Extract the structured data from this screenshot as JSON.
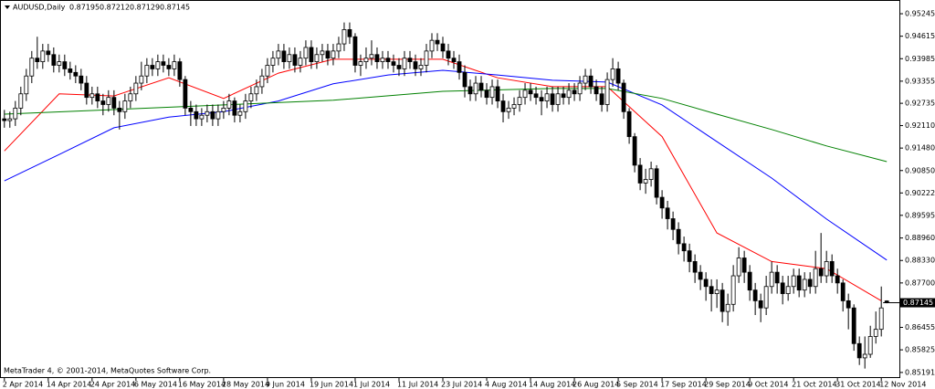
{
  "chart_data": {
    "type": "candlestick",
    "title": "AUDUSD,Daily",
    "footer": "MetaTrader 4, © 2001-2014, MetaQuotes Software Corp.",
    "bull_color": "#ffffff",
    "bear_color": "#000000",
    "xlim": [
      -0.8,
      163.3
    ],
    "ylim": [
      0.8506,
      0.9563
    ],
    "xticks": [
      {
        "value": 0,
        "label": "2 Apr 2014"
      },
      {
        "value": 8,
        "label": "14 Apr 2014"
      },
      {
        "value": 16,
        "label": "24 Apr 2014"
      },
      {
        "value": 24,
        "label": "6 May 2014"
      },
      {
        "value": 32,
        "label": "16 May 2014"
      },
      {
        "value": 40,
        "label": "28 May 2014"
      },
      {
        "value": 48,
        "label": "9 Jun 2014"
      },
      {
        "value": 56,
        "label": "19 Jun 2014"
      },
      {
        "value": 64,
        "label": "1 Jul 2014"
      },
      {
        "value": 72,
        "label": "11 Jul 2014"
      },
      {
        "value": 80,
        "label": "23 Jul 2014"
      },
      {
        "value": 88,
        "label": "4 Aug 2014"
      },
      {
        "value": 96,
        "label": "14 Aug 2014"
      },
      {
        "value": 104,
        "label": "26 Aug 2014"
      },
      {
        "value": 112,
        "label": "5 Sep 2014"
      },
      {
        "value": 120,
        "label": "17 Sep 2014"
      },
      {
        "value": 128,
        "label": "29 Sep 2014"
      },
      {
        "value": 136,
        "label": "9 Oct 2014"
      },
      {
        "value": 144,
        "label": "21 Oct 2014"
      },
      {
        "value": 152,
        "label": "31 Oct 2014"
      },
      {
        "value": 160,
        "label": "12 Nov 2014"
      }
    ],
    "yticks": [
      0.95245,
      0.94615,
      0.93985,
      0.93355,
      0.92735,
      {
        "value": 0.9211,
        "label": "0.92110"
      },
      {
        "value": 0.9148,
        "label": "0.91480"
      },
      {
        "value": 0.9085,
        "label": "0.90850"
      },
      0.90222,
      0.89595,
      {
        "value": 0.8896,
        "label": "0.88960"
      },
      {
        "value": 0.8833,
        "label": "0.88330"
      },
      {
        "value": 0.877,
        "label": "0.87700"
      },
      0.86455,
      0.85825,
      0.85191
    ],
    "candles": [
      [
        0.923,
        0.9255,
        0.9205,
        0.9225
      ],
      [
        0.9225,
        0.925,
        0.9205,
        0.923
      ],
      [
        0.923,
        0.928,
        0.921,
        0.926
      ],
      [
        0.926,
        0.932,
        0.924,
        0.93
      ],
      [
        0.93,
        0.937,
        0.928,
        0.935
      ],
      [
        0.935,
        0.942,
        0.933,
        0.94
      ],
      [
        0.94,
        0.946,
        0.937,
        0.939
      ],
      [
        0.939,
        0.944,
        0.937,
        0.942
      ],
      [
        0.942,
        0.944,
        0.939,
        0.941
      ],
      [
        0.941,
        0.943,
        0.936,
        0.938
      ],
      [
        0.938,
        0.941,
        0.936,
        0.939
      ],
      [
        0.939,
        0.941,
        0.935,
        0.937
      ],
      [
        0.937,
        0.939,
        0.934,
        0.936
      ],
      [
        0.936,
        0.938,
        0.933,
        0.935
      ],
      [
        0.935,
        0.937,
        0.931,
        0.933
      ],
      [
        0.933,
        0.935,
        0.927,
        0.929
      ],
      [
        0.929,
        0.932,
        0.927,
        0.93
      ],
      [
        0.93,
        0.932,
        0.926,
        0.928
      ],
      [
        0.928,
        0.93,
        0.924,
        0.927
      ],
      [
        0.927,
        0.931,
        0.925,
        0.929
      ],
      [
        0.929,
        0.931,
        0.924,
        0.926
      ],
      [
        0.926,
        0.928,
        0.92,
        0.925
      ],
      [
        0.925,
        0.93,
        0.923,
        0.928
      ],
      [
        0.928,
        0.932,
        0.926,
        0.93
      ],
      [
        0.93,
        0.935,
        0.928,
        0.933
      ],
      [
        0.933,
        0.939,
        0.931,
        0.935
      ],
      [
        0.935,
        0.94,
        0.933,
        0.938
      ],
      [
        0.938,
        0.94,
        0.935,
        0.937
      ],
      [
        0.937,
        0.941,
        0.935,
        0.939
      ],
      [
        0.939,
        0.941,
        0.936,
        0.938
      ],
      [
        0.938,
        0.94,
        0.935,
        0.937
      ],
      [
        0.937,
        0.941,
        0.935,
        0.939
      ],
      [
        0.939,
        0.94,
        0.932,
        0.934
      ],
      [
        0.934,
        0.935,
        0.924,
        0.926
      ],
      [
        0.926,
        0.928,
        0.921,
        0.925
      ],
      [
        0.925,
        0.927,
        0.921,
        0.923
      ],
      [
        0.923,
        0.926,
        0.921,
        0.924
      ],
      [
        0.924,
        0.927,
        0.922,
        0.925
      ],
      [
        0.925,
        0.927,
        0.921,
        0.923
      ],
      [
        0.923,
        0.927,
        0.921,
        0.925
      ],
      [
        0.925,
        0.928,
        0.923,
        0.926
      ],
      [
        0.926,
        0.93,
        0.924,
        0.928
      ],
      [
        0.928,
        0.929,
        0.922,
        0.924
      ],
      [
        0.924,
        0.927,
        0.922,
        0.925
      ],
      [
        0.925,
        0.93,
        0.923,
        0.928
      ],
      [
        0.928,
        0.932,
        0.926,
        0.93
      ],
      [
        0.93,
        0.934,
        0.928,
        0.932
      ],
      [
        0.932,
        0.937,
        0.93,
        0.935
      ],
      [
        0.935,
        0.94,
        0.933,
        0.938
      ],
      [
        0.938,
        0.942,
        0.936,
        0.94
      ],
      [
        0.94,
        0.944,
        0.938,
        0.942
      ],
      [
        0.942,
        0.944,
        0.937,
        0.939
      ],
      [
        0.939,
        0.943,
        0.937,
        0.941
      ],
      [
        0.941,
        0.943,
        0.936,
        0.938
      ],
      [
        0.938,
        0.942,
        0.936,
        0.94
      ],
      [
        0.94,
        0.945,
        0.938,
        0.943
      ],
      [
        0.943,
        0.945,
        0.937,
        0.939
      ],
      [
        0.939,
        0.943,
        0.937,
        0.941
      ],
      [
        0.941,
        0.944,
        0.939,
        0.942
      ],
      [
        0.942,
        0.944,
        0.938,
        0.94
      ],
      [
        0.94,
        0.944,
        0.938,
        0.942
      ],
      [
        0.942,
        0.946,
        0.94,
        0.944
      ],
      [
        0.944,
        0.95,
        0.942,
        0.948
      ],
      [
        0.948,
        0.95,
        0.944,
        0.946
      ],
      [
        0.946,
        0.947,
        0.936,
        0.938
      ],
      [
        0.938,
        0.941,
        0.935,
        0.939
      ],
      [
        0.939,
        0.943,
        0.937,
        0.94
      ],
      [
        0.94,
        0.945,
        0.938,
        0.941
      ],
      [
        0.941,
        0.943,
        0.937,
        0.939
      ],
      [
        0.939,
        0.942,
        0.937,
        0.94
      ],
      [
        0.94,
        0.942,
        0.937,
        0.939
      ],
      [
        0.939,
        0.941,
        0.936,
        0.938
      ],
      [
        0.938,
        0.94,
        0.935,
        0.937
      ],
      [
        0.937,
        0.942,
        0.935,
        0.94
      ],
      [
        0.94,
        0.942,
        0.937,
        0.939
      ],
      [
        0.939,
        0.941,
        0.935,
        0.937
      ],
      [
        0.937,
        0.94,
        0.935,
        0.938
      ],
      [
        0.938,
        0.944,
        0.936,
        0.942
      ],
      [
        0.942,
        0.947,
        0.94,
        0.945
      ],
      [
        0.945,
        0.947,
        0.942,
        0.944
      ],
      [
        0.944,
        0.946,
        0.94,
        0.942
      ],
      [
        0.942,
        0.944,
        0.938,
        0.94
      ],
      [
        0.94,
        0.942,
        0.937,
        0.939
      ],
      [
        0.939,
        0.941,
        0.934,
        0.936
      ],
      [
        0.936,
        0.938,
        0.929,
        0.932
      ],
      [
        0.932,
        0.934,
        0.928,
        0.93
      ],
      [
        0.93,
        0.935,
        0.928,
        0.933
      ],
      [
        0.933,
        0.935,
        0.929,
        0.931
      ],
      [
        0.931,
        0.933,
        0.927,
        0.929
      ],
      [
        0.929,
        0.934,
        0.927,
        0.932
      ],
      [
        0.932,
        0.934,
        0.926,
        0.928
      ],
      [
        0.928,
        0.93,
        0.922,
        0.925
      ],
      [
        0.925,
        0.928,
        0.923,
        0.926
      ],
      [
        0.926,
        0.929,
        0.924,
        0.927
      ],
      [
        0.927,
        0.931,
        0.925,
        0.929
      ],
      [
        0.929,
        0.933,
        0.927,
        0.931
      ],
      [
        0.931,
        0.933,
        0.928,
        0.93
      ],
      [
        0.93,
        0.932,
        0.927,
        0.929
      ],
      [
        0.929,
        0.931,
        0.924,
        0.928
      ],
      [
        0.928,
        0.932,
        0.926,
        0.93
      ],
      [
        0.93,
        0.932,
        0.925,
        0.927
      ],
      [
        0.927,
        0.932,
        0.925,
        0.93
      ],
      [
        0.93,
        0.932,
        0.927,
        0.929
      ],
      [
        0.929,
        0.933,
        0.927,
        0.931
      ],
      [
        0.931,
        0.933,
        0.928,
        0.93
      ],
      [
        0.93,
        0.935,
        0.928,
        0.933
      ],
      [
        0.933,
        0.937,
        0.931,
        0.935
      ],
      [
        0.935,
        0.937,
        0.93,
        0.932
      ],
      [
        0.932,
        0.934,
        0.928,
        0.93
      ],
      [
        0.93,
        0.932,
        0.925,
        0.927
      ],
      [
        0.927,
        0.936,
        0.925,
        0.934
      ],
      [
        0.934,
        0.94,
        0.932,
        0.937
      ],
      [
        0.937,
        0.939,
        0.931,
        0.933
      ],
      [
        0.933,
        0.934,
        0.923,
        0.925
      ],
      [
        0.925,
        0.926,
        0.916,
        0.918
      ],
      [
        0.918,
        0.919,
        0.908,
        0.91
      ],
      [
        0.91,
        0.912,
        0.903,
        0.905
      ],
      [
        0.905,
        0.909,
        0.902,
        0.906
      ],
      [
        0.906,
        0.911,
        0.904,
        0.909
      ],
      [
        0.909,
        0.91,
        0.899,
        0.901
      ],
      [
        0.901,
        0.903,
        0.895,
        0.898
      ],
      [
        0.898,
        0.9,
        0.892,
        0.895
      ],
      [
        0.895,
        0.897,
        0.889,
        0.892
      ],
      [
        0.892,
        0.894,
        0.885,
        0.888
      ],
      [
        0.888,
        0.89,
        0.883,
        0.886
      ],
      [
        0.886,
        0.888,
        0.88,
        0.883
      ],
      [
        0.883,
        0.885,
        0.877,
        0.88
      ],
      [
        0.88,
        0.882,
        0.875,
        0.878
      ],
      [
        0.878,
        0.88,
        0.872,
        0.876
      ],
      [
        0.876,
        0.878,
        0.869,
        0.874
      ],
      [
        0.874,
        0.878,
        0.87,
        0.875
      ],
      [
        0.875,
        0.877,
        0.866,
        0.869
      ],
      [
        0.869,
        0.874,
        0.865,
        0.871
      ],
      [
        0.871,
        0.882,
        0.869,
        0.879
      ],
      [
        0.879,
        0.887,
        0.877,
        0.884
      ],
      [
        0.884,
        0.886,
        0.877,
        0.88
      ],
      [
        0.88,
        0.882,
        0.872,
        0.875
      ],
      [
        0.875,
        0.877,
        0.868,
        0.872
      ],
      [
        0.872,
        0.874,
        0.866,
        0.87
      ],
      [
        0.87,
        0.879,
        0.868,
        0.876
      ],
      [
        0.876,
        0.883,
        0.874,
        0.88
      ],
      [
        0.88,
        0.882,
        0.874,
        0.877
      ],
      [
        0.877,
        0.879,
        0.871,
        0.874
      ],
      [
        0.874,
        0.879,
        0.872,
        0.876
      ],
      [
        0.876,
        0.881,
        0.874,
        0.879
      ],
      [
        0.879,
        0.881,
        0.873,
        0.875
      ],
      [
        0.875,
        0.88,
        0.873,
        0.878
      ],
      [
        0.878,
        0.88,
        0.874,
        0.876
      ],
      [
        0.876,
        0.886,
        0.874,
        0.881
      ],
      [
        0.881,
        0.891,
        0.877,
        0.879
      ],
      [
        0.879,
        0.886,
        0.877,
        0.883
      ],
      [
        0.883,
        0.885,
        0.877,
        0.879
      ],
      [
        0.879,
        0.881,
        0.874,
        0.877
      ],
      [
        0.877,
        0.878,
        0.869,
        0.872
      ],
      [
        0.872,
        0.874,
        0.864,
        0.87
      ],
      [
        0.87,
        0.871,
        0.858,
        0.86
      ],
      [
        0.86,
        0.862,
        0.854,
        0.856
      ],
      [
        0.856,
        0.862,
        0.853,
        0.857
      ],
      [
        0.857,
        0.865,
        0.856,
        0.862
      ],
      [
        0.862,
        0.869,
        0.86,
        0.864
      ],
      [
        0.864,
        0.876,
        0.862,
        0.87
      ],
      [
        0.87195,
        0.87212,
        0.87129,
        0.87145
      ]
    ],
    "series": [
      {
        "color": "#ff0000",
        "x": [
          0,
          10,
          20,
          30,
          40,
          50,
          60,
          70,
          80,
          90,
          100,
          110,
          120,
          130,
          140,
          150,
          160
        ],
        "values": [
          0.914,
          0.93,
          0.9294,
          0.9345,
          0.9287,
          0.9358,
          0.9397,
          0.9397,
          0.9397,
          0.9345,
          0.932,
          0.932,
          0.918,
          0.891,
          0.883,
          0.881,
          0.872
        ]
      },
      {
        "color": "#0000ff",
        "x": [
          0,
          10,
          20,
          30,
          40,
          50,
          60,
          70,
          80,
          90,
          100,
          110,
          120,
          130,
          140,
          150,
          161
        ],
        "values": [
          0.9056,
          0.913,
          0.9205,
          0.9235,
          0.925,
          0.928,
          0.9328,
          0.9353,
          0.9366,
          0.9353,
          0.9338,
          0.9333,
          0.9269,
          0.9166,
          0.9064,
          0.8949,
          0.8834
        ]
      },
      {
        "color": "#008000",
        "x": [
          0,
          20,
          40,
          60,
          80,
          100,
          110,
          120,
          130,
          140,
          150,
          161
        ],
        "values": [
          0.9243,
          0.9256,
          0.9269,
          0.9282,
          0.9307,
          0.9315,
          0.9315,
          0.9287,
          0.9243,
          0.92,
          0.9154,
          0.911
        ]
      }
    ]
  }
}
